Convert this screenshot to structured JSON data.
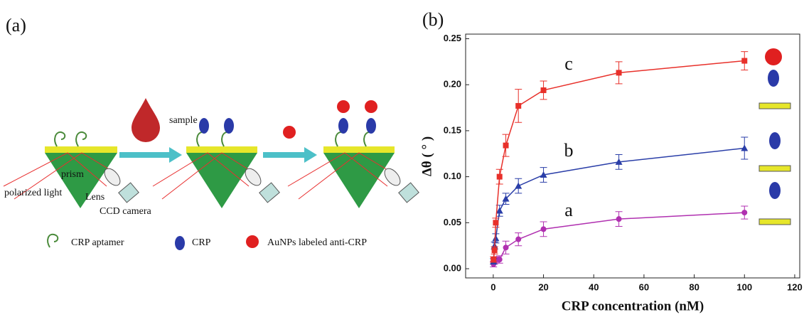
{
  "panel_a": {
    "label": "(a)",
    "sample": "sample",
    "prism": "prism",
    "polarized_light": "polarized light",
    "lens": "Lens",
    "camera": "CCD camera",
    "legend": [
      "CRP aptamer",
      "CRP",
      "AuNPs labeled anti-CRP"
    ]
  },
  "chart_data": {
    "type": "scatter",
    "panel_label": "(b)",
    "x_label": "CRP concentration (nM)",
    "y_label": "Δθ ( ° )",
    "x": [
      0.1,
      0.5,
      1,
      2.5,
      5,
      10,
      20,
      50,
      100
    ],
    "series": [
      {
        "name": "a",
        "color": "#b030b0",
        "marker": "circle",
        "values": [
          0.005,
          0.008,
          0.01,
          0.01,
          0.023,
          0.032,
          0.043,
          0.054,
          0.061
        ],
        "errors": [
          0.003,
          0.003,
          0.003,
          0.004,
          0.007,
          0.007,
          0.008,
          0.008,
          0.007
        ]
      },
      {
        "name": "b",
        "color": "#2a3ea8",
        "marker": "triangle",
        "values": [
          0.008,
          0.025,
          0.033,
          0.063,
          0.076,
          0.09,
          0.102,
          0.116,
          0.131
        ],
        "errors": [
          0.003,
          0.004,
          0.005,
          0.006,
          0.006,
          0.008,
          0.008,
          0.008,
          0.012
        ]
      },
      {
        "name": "c",
        "color": "#e8302a",
        "marker": "square",
        "values": [
          0.01,
          0.02,
          0.05,
          0.1,
          0.134,
          0.177,
          0.194,
          0.213,
          0.226
        ],
        "errors": [
          0.003,
          0.004,
          0.005,
          0.008,
          0.012,
          0.018,
          0.01,
          0.012,
          0.01
        ]
      }
    ],
    "xlim": [
      -11,
      122
    ],
    "xticks": [
      0,
      20,
      40,
      60,
      80,
      100,
      120
    ],
    "ylim": [
      -0.01,
      0.255
    ],
    "yticks": [
      {
        "value": 0,
        "label": "0.00"
      },
      0.05,
      {
        "value": 0.1,
        "label": "0.10"
      },
      0.15,
      {
        "value": 0.2,
        "label": "0.20"
      },
      0.25
    ]
  }
}
